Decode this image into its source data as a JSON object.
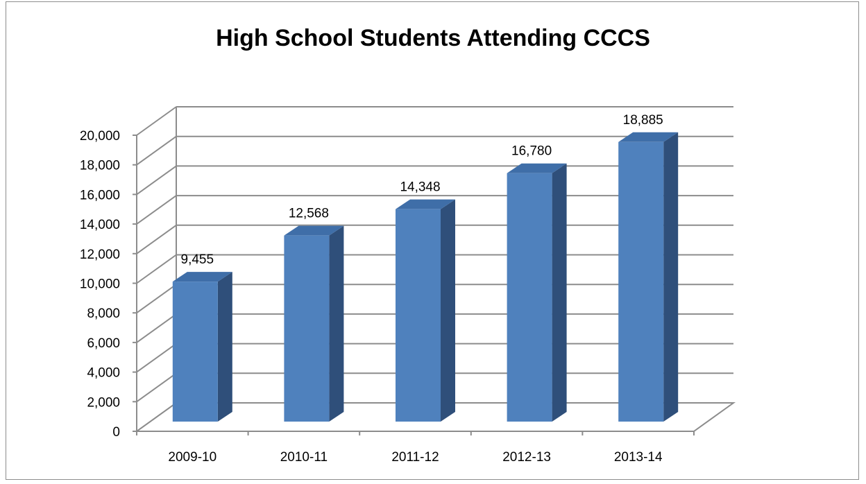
{
  "chart_data": {
    "type": "bar",
    "title": "High School Students Attending CCCS",
    "categories": [
      "2009-10",
      "2010-11",
      "2011-12",
      "2012-13",
      "2013-14"
    ],
    "values": [
      9455,
      12568,
      14348,
      16780,
      18885
    ],
    "data_labels": [
      "9,455",
      "12,568",
      "14,348",
      "16,780",
      "18,885"
    ],
    "ylim": [
      0,
      20000
    ],
    "y_ticks": [
      0,
      2000,
      4000,
      6000,
      8000,
      10000,
      12000,
      14000,
      16000,
      18000,
      20000
    ],
    "y_tick_labels": [
      "0",
      "2,000",
      "4,000",
      "6,000",
      "8,000",
      "10,000",
      "12,000",
      "14,000",
      "16,000",
      "18,000",
      "20,000"
    ],
    "xlabel": "",
    "ylabel": "",
    "grid": true,
    "legend": "none",
    "three_d": true,
    "colors": {
      "bar_front": "#4f81bd",
      "bar_top": "#3f6ea8",
      "bar_side": "#2f4f7a",
      "grid": "#8c8c8c"
    }
  }
}
